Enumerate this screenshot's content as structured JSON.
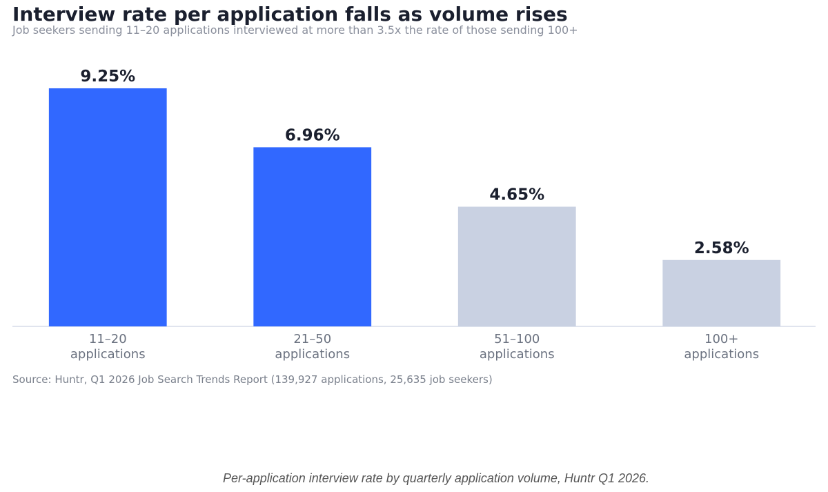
{
  "chart_data": {
    "type": "bar",
    "title": "Interview rate per application falls as volume rises",
    "subtitle": "Job seekers sending 11–20 applications interviewed at more than 3.5x the rate of those sending 100+",
    "categories": [
      "11–20\napplications",
      "21–50\napplications",
      "51–100\napplications",
      "100+\napplications"
    ],
    "values": [
      9.25,
      6.96,
      4.65,
      2.58
    ],
    "value_labels": [
      "9.25%",
      "6.96%",
      "4.65%",
      "2.58%"
    ],
    "colors": [
      "#3168ff",
      "#3168ff",
      "#c9d1e2",
      "#c9d1e2"
    ],
    "ylim": [
      0,
      10
    ],
    "source": "Source: Huntr, Q1 2026 Job Search Trends Report (139,927 applications, 25,635 job seekers)",
    "caption": "Per-application interview rate by quarterly application volume, Huntr Q1 2026."
  }
}
